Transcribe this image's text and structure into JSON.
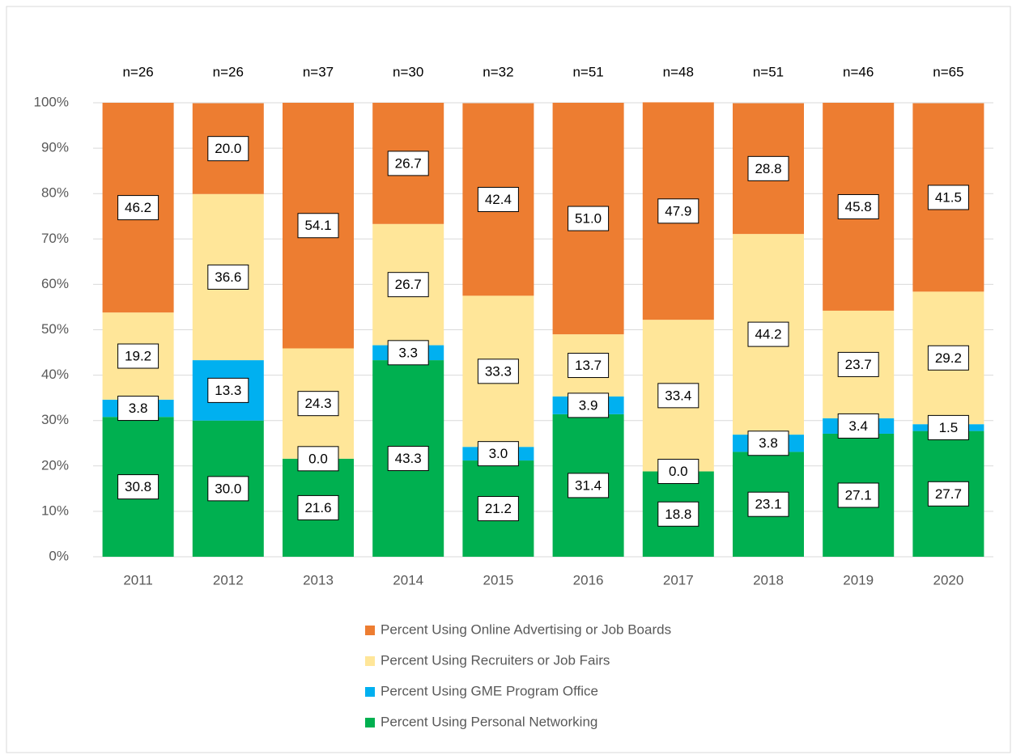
{
  "chart_data": {
    "type": "stacked_bar",
    "categories": [
      "2011",
      "2012",
      "2013",
      "2014",
      "2015",
      "2016",
      "2017",
      "2018",
      "2019",
      "2020"
    ],
    "annotations": [
      "n=26",
      "n=26",
      "n=37",
      "n=30",
      "n=32",
      "n=51",
      "n=48",
      "n=51",
      "n=46",
      "n=65"
    ],
    "series": [
      {
        "name": "Percent Using Personal Networking",
        "color": "#00b050",
        "values": [
          30.8,
          30.0,
          21.6,
          43.3,
          21.2,
          31.4,
          18.8,
          23.1,
          27.1,
          27.7
        ],
        "value_labels": [
          "30.8",
          "30.0",
          "21.6",
          "43.3",
          "21.2",
          "31.4",
          "18.8",
          "23.1",
          "27.1",
          "27.7"
        ]
      },
      {
        "name": "Percent Using GME Program Office",
        "color": "#00b0f0",
        "values": [
          3.8,
          13.3,
          0.0,
          3.3,
          3.0,
          3.9,
          0.0,
          3.8,
          3.4,
          1.5
        ],
        "value_labels": [
          "3.8",
          "13.3",
          "0.0",
          "3.3",
          "3.0",
          "3.9",
          "0.0",
          "3.8",
          "3.4",
          "1.5"
        ]
      },
      {
        "name": "Percent Using Recruiters or Job Fairs",
        "color": "#ffe699",
        "values": [
          19.2,
          36.6,
          24.3,
          26.7,
          33.3,
          13.7,
          33.4,
          44.2,
          23.7,
          29.2
        ],
        "value_labels": [
          "19.2",
          "36.6",
          "24.3",
          "26.7",
          "33.3",
          "13.7",
          "33.4",
          "44.2",
          "23.7",
          "29.2"
        ]
      },
      {
        "name": "Percent Using Online Advertising or Job Boards",
        "color": "#ed7d31",
        "values": [
          46.2,
          20.0,
          54.1,
          26.7,
          42.4,
          51.0,
          47.9,
          28.8,
          45.8,
          41.5
        ],
        "value_labels": [
          "46.2",
          "20.0",
          "54.1",
          "26.7",
          "42.4",
          "51.0",
          "47.9",
          "28.8",
          "45.8",
          "41.5"
        ]
      }
    ],
    "ylim": [
      0,
      100
    ],
    "yticks": [
      {
        "value": 0,
        "label": "0%"
      },
      {
        "value": 10,
        "label": "10%"
      },
      {
        "value": 20,
        "label": "20%"
      },
      {
        "value": 30,
        "label": "30%"
      },
      {
        "value": 40,
        "label": "40%"
      },
      {
        "value": 50,
        "label": "50%"
      },
      {
        "value": 60,
        "label": "60%"
      },
      {
        "value": 70,
        "label": "70%"
      },
      {
        "value": 80,
        "label": "80%"
      },
      {
        "value": 90,
        "label": "90%"
      },
      {
        "value": 100,
        "label": "100%"
      }
    ],
    "grid": true,
    "legend": "bottom"
  }
}
